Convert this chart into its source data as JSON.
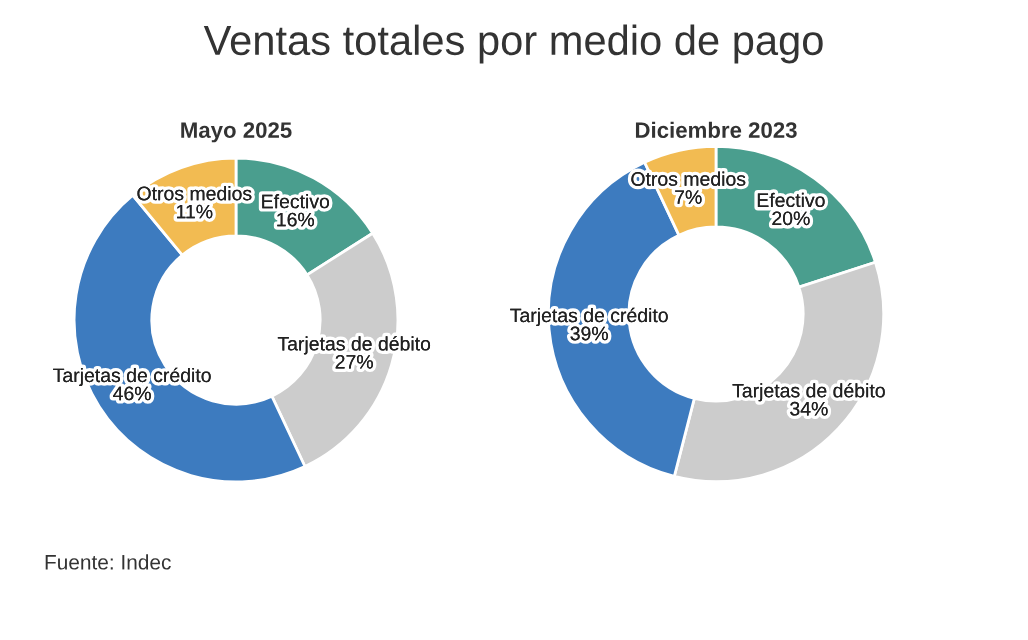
{
  "chart_data": [
    {
      "type": "donut",
      "title": "Ventas totales por medio de pago",
      "subtitle": "Mayo 2025",
      "categories": [
        "Efectivo",
        "Tarjetas de débito",
        "Tarjetas de crédito",
        "Otros medios"
      ],
      "values": [
        16,
        27,
        46,
        11
      ],
      "value_labels": [
        "16%",
        "27%",
        "46%",
        "11%"
      ],
      "colors": [
        "#4a9e8e",
        "#cccccc",
        "#3d7bbf",
        "#f2bb52"
      ],
      "annotations": [
        "Fuente: Indec"
      ]
    },
    {
      "type": "donut",
      "subtitle": "Diciembre 2023",
      "categories": [
        "Efectivo",
        "Tarjetas de débito",
        "Tarjetas de crédito",
        "Otros medios"
      ],
      "values": [
        20,
        34,
        39,
        7
      ],
      "value_labels": [
        "20%",
        "34%",
        "39%",
        "7%"
      ],
      "colors": [
        "#4a9e8e",
        "#cccccc",
        "#3d7bbf",
        "#f2bb52"
      ]
    }
  ]
}
